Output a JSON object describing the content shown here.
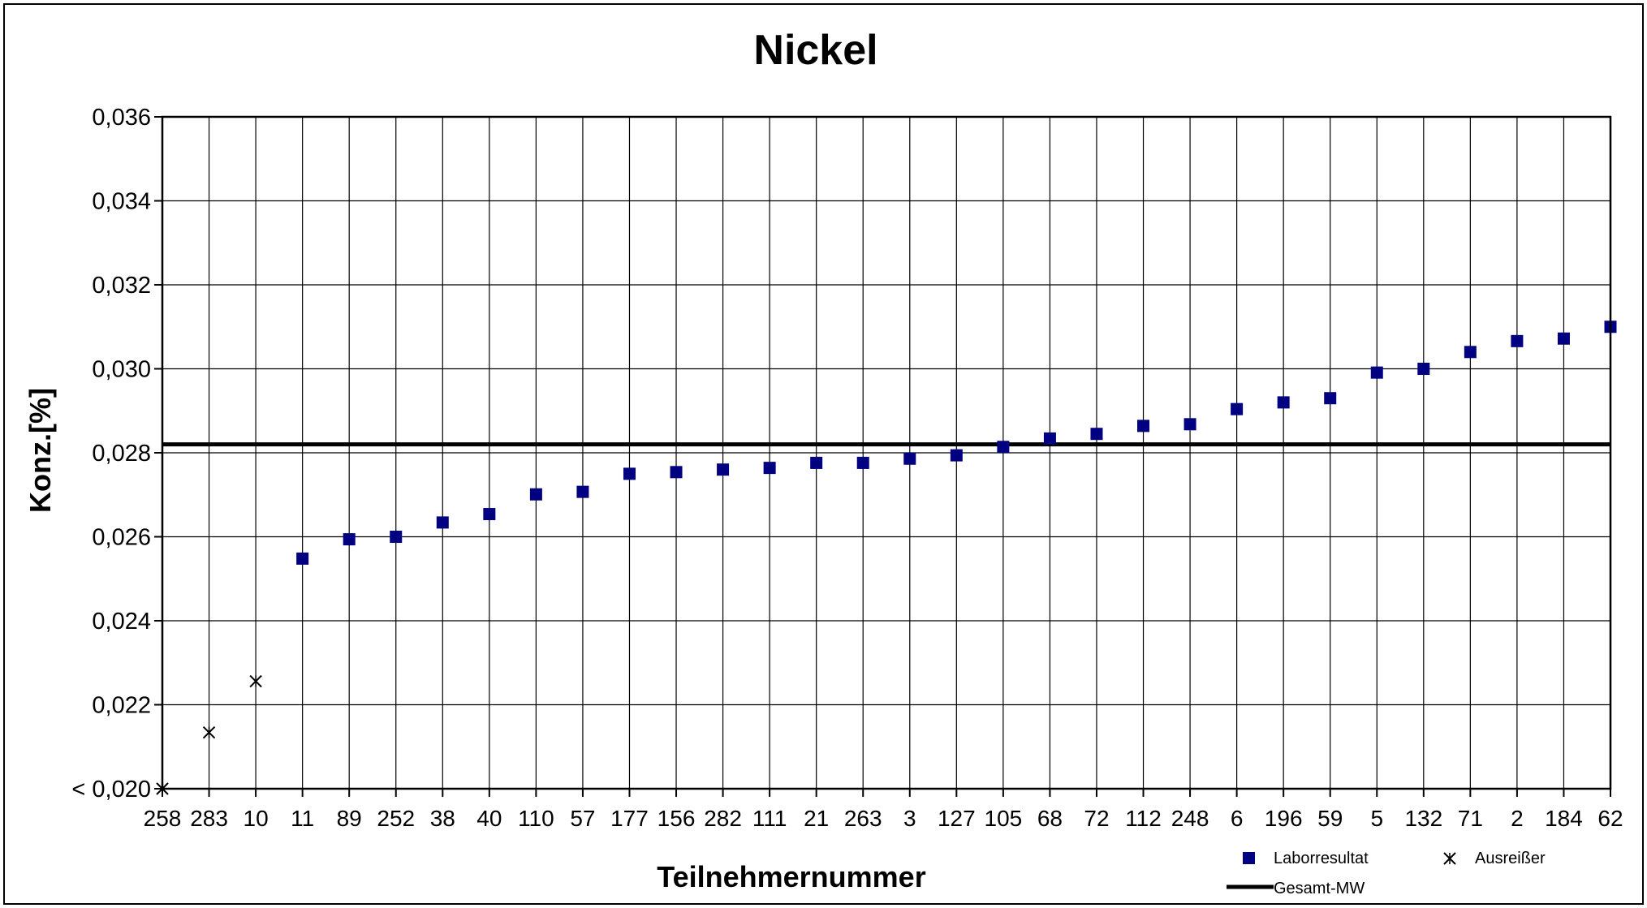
{
  "chart_data": {
    "type": "scatter",
    "title": "Nickel",
    "xlabel": "Teilnehmernummer",
    "ylabel": "Konz.[%]",
    "ylim": [
      0.02,
      0.036
    ],
    "yticks": [
      "< 0,020",
      "0,022",
      "0,024",
      "0,026",
      "0,028",
      "0,030",
      "0,032",
      "0,034",
      "0,036"
    ],
    "categories": [
      "258",
      "283",
      "10",
      "11",
      "89",
      "252",
      "38",
      "40",
      "110",
      "57",
      "177",
      "156",
      "282",
      "111",
      "21",
      "263",
      "3",
      "127",
      "105",
      "68",
      "72",
      "112",
      "248",
      "6",
      "196",
      "59",
      "5",
      "132",
      "71",
      "2",
      "184",
      "62"
    ],
    "grid": true,
    "legend_position": "bottom-right",
    "series": [
      {
        "name": "Laborresultat",
        "marker": "square",
        "color": "#000080",
        "points": [
          {
            "x": "11",
            "y": 0.02548
          },
          {
            "x": "89",
            "y": 0.02594
          },
          {
            "x": "252",
            "y": 0.026
          },
          {
            "x": "38",
            "y": 0.02634
          },
          {
            "x": "40",
            "y": 0.02654
          },
          {
            "x": "110",
            "y": 0.02701
          },
          {
            "x": "57",
            "y": 0.02707
          },
          {
            "x": "177",
            "y": 0.0275
          },
          {
            "x": "156",
            "y": 0.02754
          },
          {
            "x": "282",
            "y": 0.0276
          },
          {
            "x": "111",
            "y": 0.02764
          },
          {
            "x": "21",
            "y": 0.02776
          },
          {
            "x": "263",
            "y": 0.02776
          },
          {
            "x": "3",
            "y": 0.02786
          },
          {
            "x": "127",
            "y": 0.02794
          },
          {
            "x": "105",
            "y": 0.02814
          },
          {
            "x": "68",
            "y": 0.02834
          },
          {
            "x": "72",
            "y": 0.02845
          },
          {
            "x": "112",
            "y": 0.02864
          },
          {
            "x": "248",
            "y": 0.02868
          },
          {
            "x": "6",
            "y": 0.02904
          },
          {
            "x": "196",
            "y": 0.0292
          },
          {
            "x": "59",
            "y": 0.0293
          },
          {
            "x": "5",
            "y": 0.02991
          },
          {
            "x": "132",
            "y": 0.03
          },
          {
            "x": "71",
            "y": 0.0304
          },
          {
            "x": "2",
            "y": 0.03066
          },
          {
            "x": "184",
            "y": 0.03072
          },
          {
            "x": "62",
            "y": 0.031
          }
        ]
      },
      {
        "name": "Ausreißer",
        "marker": "star-x",
        "color": "#000000",
        "points": [
          {
            "x": "258",
            "y": 0.02
          },
          {
            "x": "283",
            "y": 0.02134
          },
          {
            "x": "10",
            "y": 0.02256
          }
        ]
      },
      {
        "name": "Gesamt-MW",
        "type": "hline",
        "color": "#000000",
        "y": 0.0282
      }
    ]
  }
}
